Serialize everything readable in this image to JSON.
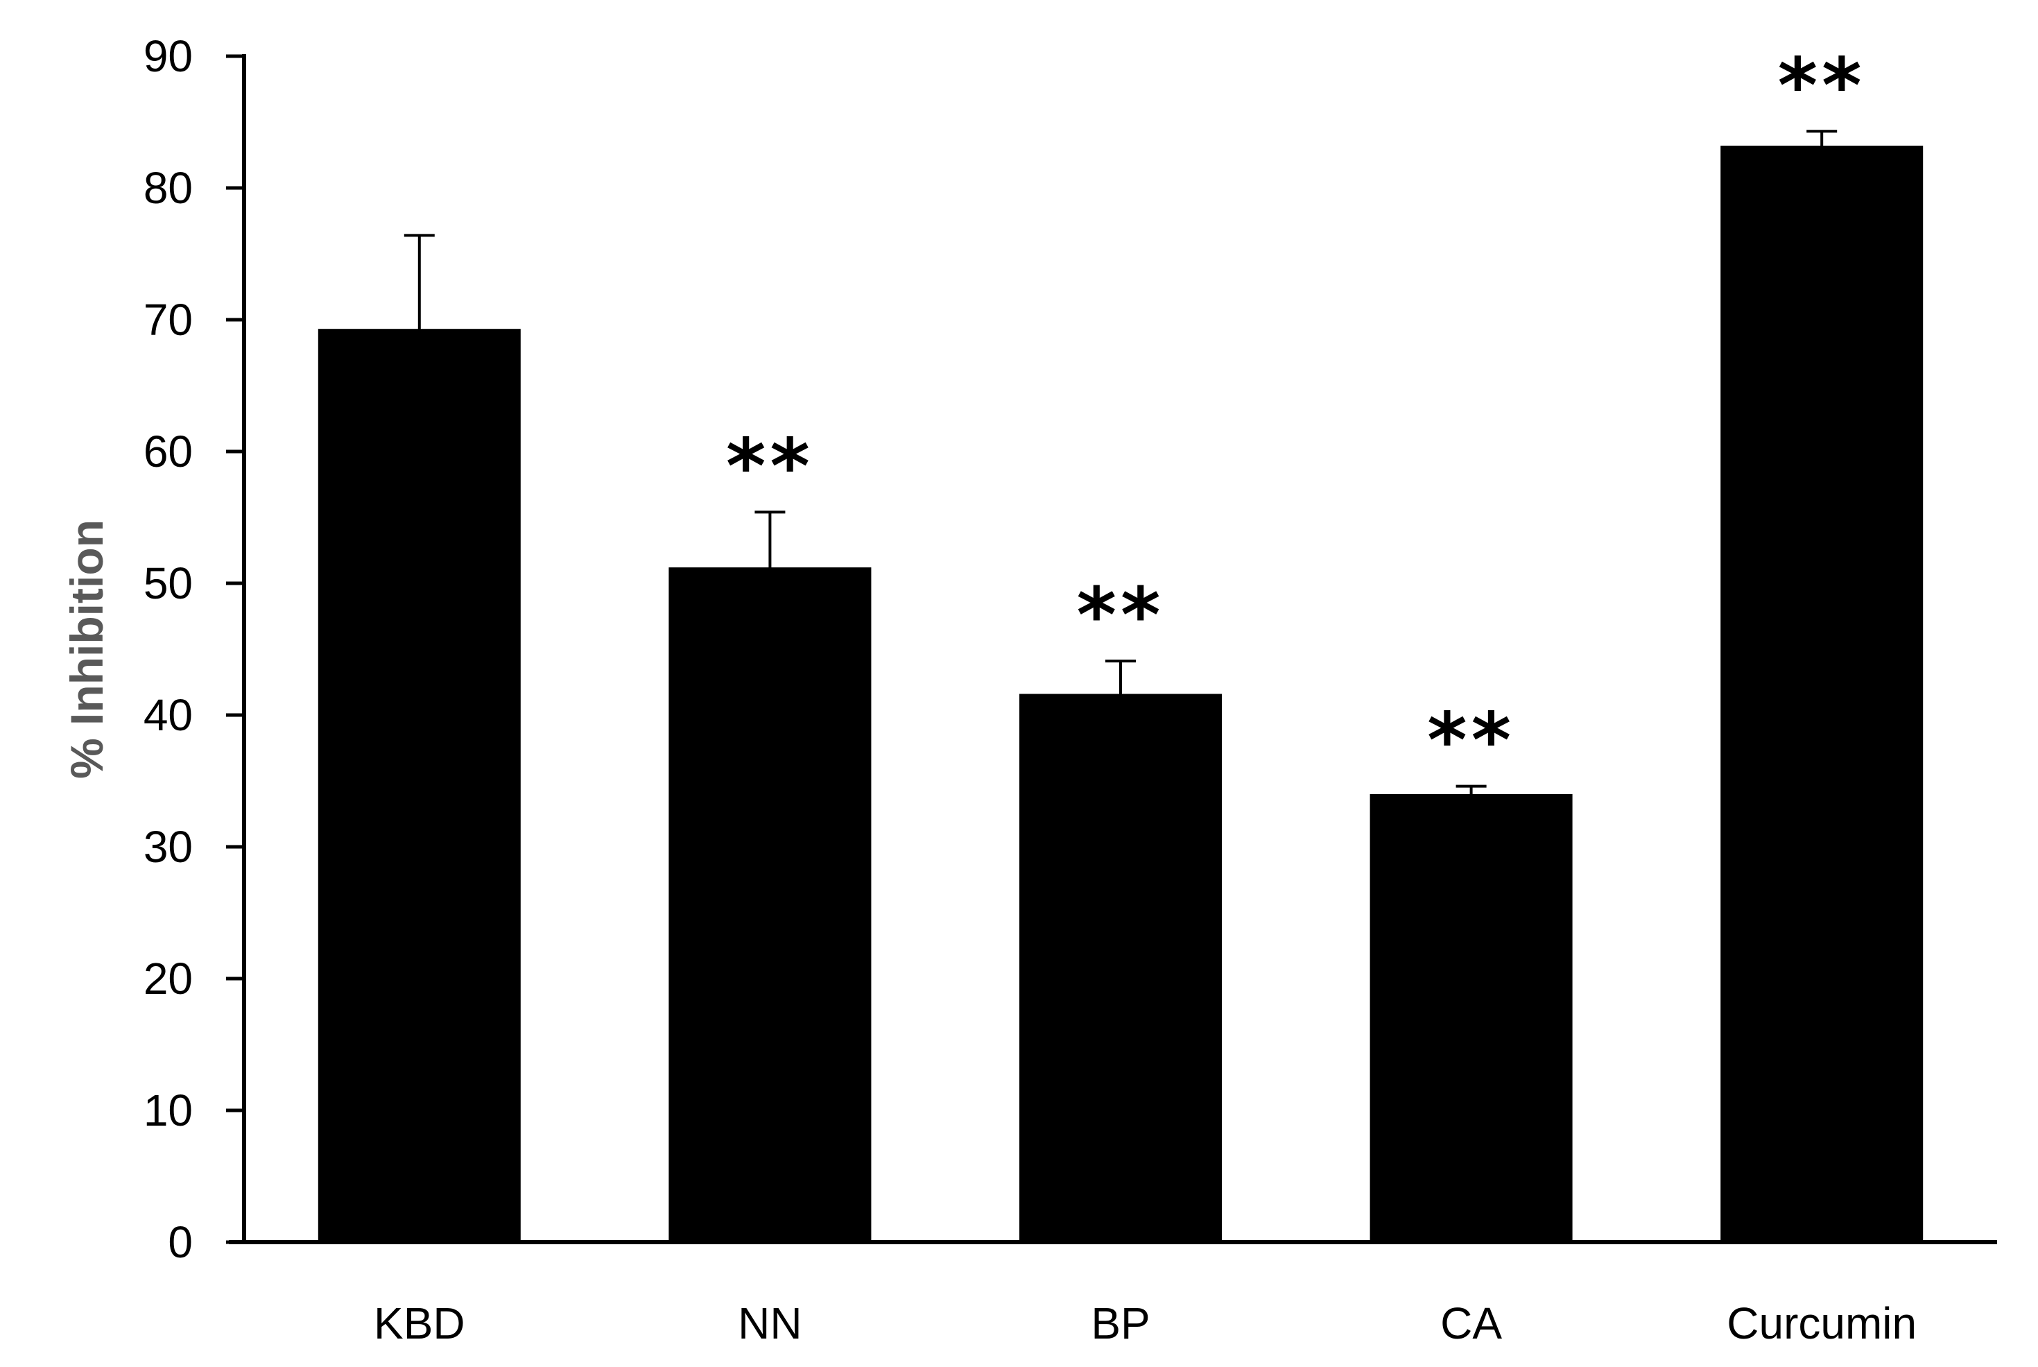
{
  "chart_data": {
    "type": "bar",
    "title": "",
    "xlabel": "",
    "ylabel": "% Inhibition",
    "ylim": [
      0,
      90
    ],
    "yticks": [
      0,
      10,
      20,
      30,
      40,
      50,
      60,
      70,
      80,
      90
    ],
    "categories": [
      "KBD",
      "NN",
      "BP",
      "CA",
      "Curcumin"
    ],
    "values": [
      69.2,
      51.1,
      41.5,
      33.9,
      83.1
    ],
    "error": [
      7.2,
      4.3,
      2.6,
      0.7,
      1.2
    ],
    "significance": [
      "",
      "**",
      "**",
      "**",
      "**"
    ],
    "grid": false,
    "legend": "none",
    "bar_color": "#000000",
    "ylabel_color": "#595959"
  }
}
